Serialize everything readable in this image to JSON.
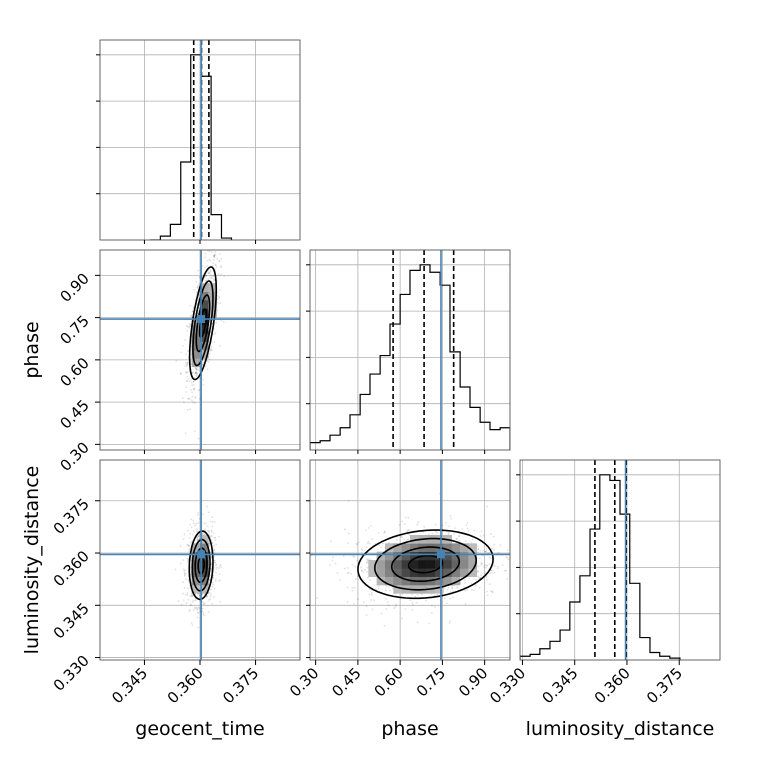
{
  "chart_data": {
    "type": "corner",
    "parameters": [
      "geocent_time",
      "phase",
      "luminosity_distance"
    ],
    "ranges": {
      "geocent_time": [
        0.333,
        0.387
      ],
      "phase": [
        0.28,
        0.99
      ],
      "luminosity_distance": [
        0.3293,
        0.3867
      ]
    },
    "ticks": {
      "geocent_time": [
        "0.345",
        "0.360",
        "0.375"
      ],
      "phase": [
        "0.30",
        "0.45",
        "0.60",
        "0.75",
        "0.90"
      ],
      "luminosity_distance": [
        "0.330",
        "0.345",
        "0.360",
        "0.375"
      ]
    },
    "truths": {
      "geocent_time": 0.3603,
      "phase": 0.745,
      "luminosity_distance": 0.3596
    },
    "quantiles": {
      "geocent_time": [
        0.3583,
        0.3604,
        0.3624
      ],
      "phase": [
        0.575,
        0.685,
        0.79
      ],
      "luminosity_distance": [
        0.3508,
        0.3565,
        0.3598
      ]
    },
    "histograms": {
      "geocent_time": {
        "bin_edges": [
          0.3465,
          0.3493,
          0.352,
          0.3548,
          0.3575,
          0.3603,
          0.363,
          0.3658,
          0.3685
        ],
        "counts": [
          0.0,
          0.02,
          0.08,
          0.4,
          0.95,
          0.84,
          0.13,
          0.01
        ]
      },
      "phase": {
        "bin_edges": [
          0.28,
          0.316,
          0.351,
          0.387,
          0.422,
          0.458,
          0.493,
          0.529,
          0.564,
          0.6,
          0.635,
          0.671,
          0.706,
          0.742,
          0.777,
          0.813,
          0.848,
          0.884,
          0.919,
          0.955,
          0.99
        ],
        "counts": [
          0.04,
          0.05,
          0.08,
          0.12,
          0.19,
          0.3,
          0.41,
          0.51,
          0.68,
          0.84,
          0.97,
          1.0,
          0.96,
          0.89,
          0.53,
          0.34,
          0.23,
          0.15,
          0.11,
          0.12
        ]
      },
      "luminosity_distance": {
        "bin_edges": [
          0.3293,
          0.3322,
          0.335,
          0.3379,
          0.3408,
          0.3436,
          0.3465,
          0.3494,
          0.3522,
          0.3551,
          0.358,
          0.3608,
          0.3637,
          0.3666,
          0.3694,
          0.3723,
          0.3752
        ],
        "counts": [
          0.02,
          0.03,
          0.06,
          0.1,
          0.16,
          0.31,
          0.45,
          0.7,
          0.99,
          0.96,
          0.78,
          0.41,
          0.12,
          0.04,
          0.02,
          0.01
        ]
      }
    },
    "pairs": [
      {
        "x": "geocent_time",
        "y": "phase",
        "center": [
          0.3608,
          0.73
        ],
        "sigma": [
          0.0018,
          0.1
        ],
        "rho": 0.6
      },
      {
        "x": "geocent_time",
        "y": "luminosity_distance",
        "center": [
          0.3603,
          0.3565
        ],
        "sigma": [
          0.0016,
          0.0049
        ],
        "rho": 0.1
      },
      {
        "x": "phase",
        "y": "luminosity_distance",
        "center": [
          0.69,
          0.3568
        ],
        "sigma": [
          0.12,
          0.0049
        ],
        "rho": 0.15
      }
    ],
    "grid": true
  }
}
